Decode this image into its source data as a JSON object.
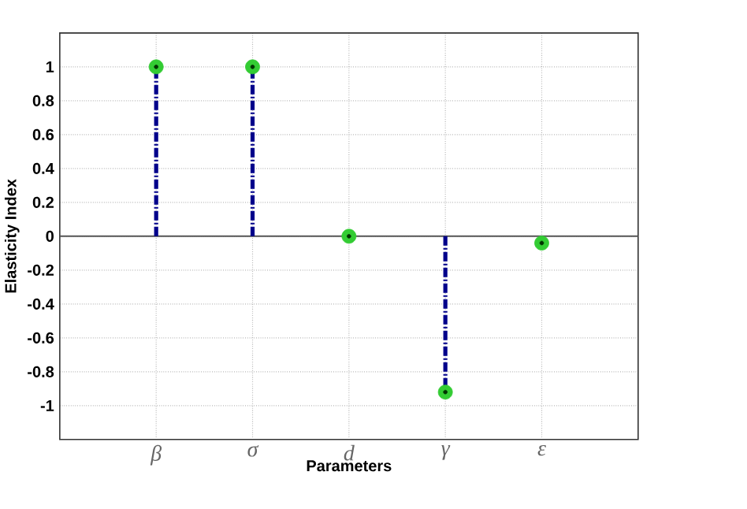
{
  "chart_data": {
    "type": "lollipop",
    "xlabel": "Parameters",
    "ylabel": "Elasticity Index",
    "categories": [
      "β",
      "σ",
      "d",
      "γ",
      "ε"
    ],
    "values": [
      1,
      1,
      0,
      -0.92,
      -0.04
    ],
    "color": "#00008b",
    "colors": [
      "#33cc33",
      "#33cc33",
      "#33cc33",
      "#33cc33",
      "#33cc33"
    ],
    "marker": "circle",
    "line_style": "dashed",
    "ylim": [
      -1.2,
      1.2
    ],
    "yticks": [
      -1,
      -0.8,
      -0.6,
      -0.4,
      -0.2,
      0,
      0.2,
      0.4,
      0.6,
      0.8,
      1
    ],
    "grid": true,
    "ref_lines": [
      {
        "axis": "y",
        "value": 0,
        "color": "#555555"
      }
    ]
  }
}
